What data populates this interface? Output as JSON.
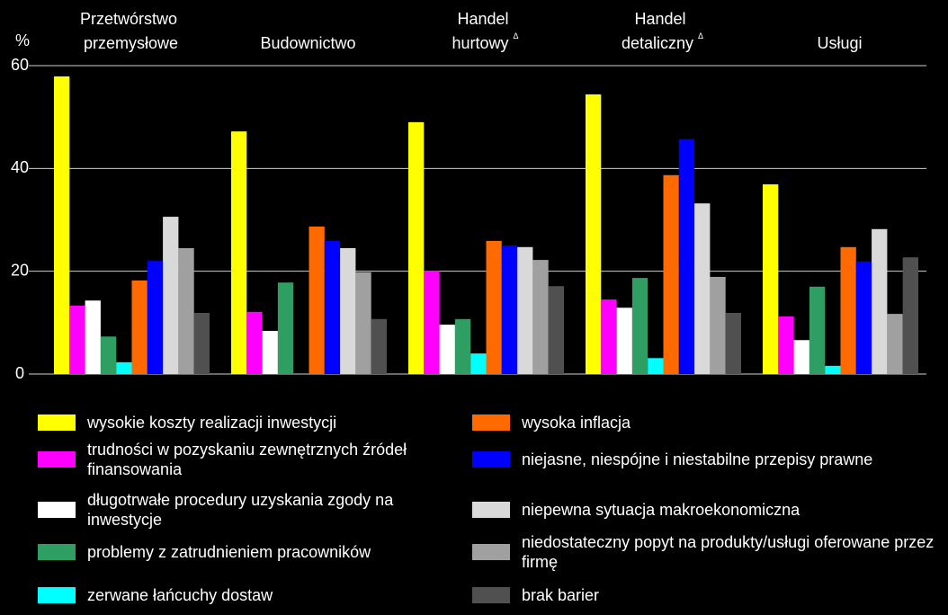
{
  "chart_data": {
    "type": "bar",
    "y_label": "%",
    "categories": [
      "Przetwórstwo przemysłowe",
      "Budownictwo",
      "Handel hurtowy Δ",
      "Handel detaliczny Δ",
      "Usługi"
    ],
    "ylim": [
      0,
      60
    ],
    "yticks": [
      0,
      20,
      40,
      60
    ],
    "grid": true,
    "series": [
      {
        "name": "wysokie koszty realizacji inwestycji",
        "color": "#ffff00",
        "values": [
          57.9,
          47.2,
          49.0,
          54.4,
          36.9
        ]
      },
      {
        "name": "trudności w pozyskaniu zewnętrznych źródeł finansowania",
        "color": "#ff00ff",
        "values": [
          13.3,
          12.1,
          20.1,
          14.5,
          11.2
        ]
      },
      {
        "name": "długotrwałe procedury uzyskania zgody na inwestycje",
        "color": "#ffffff",
        "values": [
          14.3,
          8.4,
          9.6,
          12.9,
          6.6
        ]
      },
      {
        "name": "problemy z zatrudnieniem pracowników",
        "color": "#2e9e63",
        "values": [
          7.3,
          17.8,
          10.7,
          18.7,
          17.0
        ]
      },
      {
        "name": "zerwane łańcuchy dostaw",
        "color": "#00ffff",
        "values": [
          2.3,
          0,
          4.0,
          3.1,
          1.6
        ]
      },
      {
        "name": "wysoka inflacja",
        "color": "#ff6a00",
        "values": [
          18.2,
          28.7,
          25.9,
          38.7,
          24.7
        ]
      },
      {
        "name": "niejasne, niespójne i niestabilne przepisy prawne",
        "color": "#0000ff",
        "values": [
          22.0,
          25.9,
          25.0,
          45.7,
          21.9
        ]
      },
      {
        "name": "niepewna sytuacja makroekonomiczna",
        "color": "#d9d9d9",
        "values": [
          30.6,
          24.5,
          24.7,
          33.2,
          28.2
        ]
      },
      {
        "name": "niedostateczny popyt na produkty/usługi oferowane przez firmę",
        "color": "#a0a0a0",
        "values": [
          24.5,
          19.8,
          22.2,
          18.9,
          11.7
        ]
      },
      {
        "name": "brak barier",
        "color": "#505050",
        "values": [
          11.9,
          10.7,
          17.1,
          11.9,
          22.7
        ]
      }
    ]
  }
}
